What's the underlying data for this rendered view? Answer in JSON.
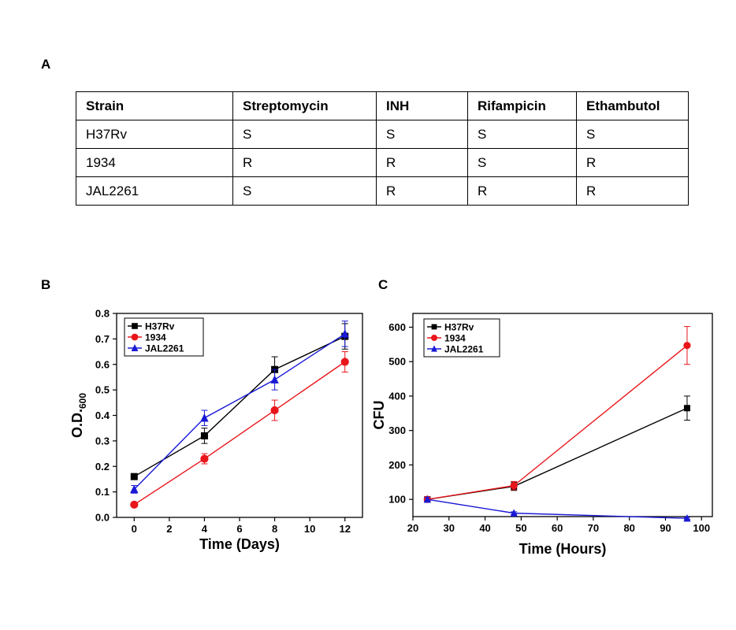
{
  "panels": {
    "a": "A",
    "b": "B",
    "c": "C"
  },
  "table": {
    "headers": [
      "Strain",
      "Streptomycin",
      "INH",
      "Rifampicin",
      "Ethambutol"
    ],
    "rows": [
      [
        "H37Rv",
        "S",
        "S",
        "S",
        "S"
      ],
      [
        "1934",
        "R",
        "R",
        "S",
        "R"
      ],
      [
        "JAL2261",
        "S",
        "R",
        "R",
        "R"
      ]
    ]
  },
  "chart_data": [
    {
      "type": "line",
      "title": "",
      "xlabel": "Time (Days)",
      "ylabel_main": "O.D.",
      "ylabel_sub": "600",
      "xlim": [
        -1,
        13
      ],
      "ylim": [
        0,
        0.8
      ],
      "xticks": [
        0,
        2,
        4,
        6,
        8,
        10,
        12
      ],
      "yticks": [
        0.0,
        0.1,
        0.2,
        0.3,
        0.4,
        0.5,
        0.6,
        0.7,
        0.8
      ],
      "ytick_labels": [
        "0.0",
        "0.1",
        "0.2",
        "0.3",
        "0.4",
        "0.5",
        "0.6",
        "0.7",
        "0.8"
      ],
      "grid": false,
      "legend": "top-left",
      "series": [
        {
          "name": "H37Rv",
          "color": "#000000",
          "marker": "square",
          "x": [
            0,
            4,
            8,
            12
          ],
          "y": [
            0.16,
            0.32,
            0.58,
            0.71
          ],
          "err": [
            0.01,
            0.03,
            0.05,
            0.05
          ]
        },
        {
          "name": "1934",
          "color": "#e8161b",
          "marker": "circle",
          "x": [
            0,
            4,
            8,
            12
          ],
          "y": [
            0.05,
            0.23,
            0.42,
            0.61
          ],
          "err": [
            0.005,
            0.02,
            0.04,
            0.04
          ]
        },
        {
          "name": "JAL2261",
          "color": "#1818d6",
          "marker": "triangle",
          "x": [
            0,
            4,
            8,
            12
          ],
          "y": [
            0.11,
            0.39,
            0.54,
            0.72
          ],
          "err": [
            0.015,
            0.03,
            0.04,
            0.05
          ]
        }
      ]
    },
    {
      "type": "line",
      "title": "",
      "xlabel": "Time (Hours)",
      "ylabel_main": "CFU",
      "ylabel_sub": "",
      "xlim": [
        20,
        103
      ],
      "ylim": [
        50,
        640
      ],
      "xticks": [
        20,
        30,
        40,
        50,
        60,
        70,
        80,
        90,
        100
      ],
      "yticks": [
        100,
        200,
        300,
        400,
        500,
        600
      ],
      "ytick_labels": [
        "100",
        "200",
        "300",
        "400",
        "500",
        "600"
      ],
      "grid": false,
      "legend": "top-left",
      "series": [
        {
          "name": "H37Rv",
          "color": "#000000",
          "marker": "square",
          "x": [
            24,
            48,
            96
          ],
          "y": [
            100,
            138,
            365
          ],
          "err": [
            8,
            12,
            35
          ]
        },
        {
          "name": "1934",
          "color": "#e8161b",
          "marker": "circle",
          "x": [
            24,
            48,
            96
          ],
          "y": [
            100,
            140,
            547
          ],
          "err": [
            8,
            12,
            55
          ]
        },
        {
          "name": "JAL2261",
          "color": "#1818d6",
          "marker": "triangle",
          "x": [
            24,
            48,
            96
          ],
          "y": [
            100,
            60,
            45
          ],
          "err": [
            6,
            4,
            3
          ]
        }
      ]
    }
  ]
}
